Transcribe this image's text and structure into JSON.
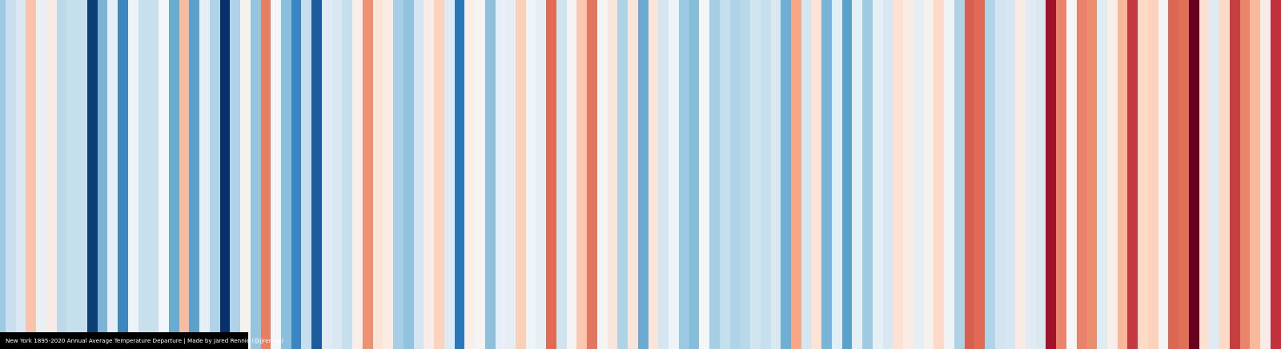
{
  "caption": "New York 1895-2020 Annual Average Temperature Departure | Made by Jared Rennie (@jjrennie)",
  "chart_data": {
    "type": "heatmap",
    "title": "New York 1895-2020 Annual Average Temperature Departure",
    "x_start": 1895,
    "x_end": 2020,
    "legend": "none",
    "grid": false,
    "colors": [
      "#9ecae1",
      "#c9dfee",
      "#d9e8f3",
      "#f9c4a9",
      "#e9f1f5",
      "#f8ebe6",
      "#bcd9ea",
      "#c6dfed",
      "#c6dfed",
      "#0b3f75",
      "#7ab3d6",
      "#e6eff6",
      "#3d87c0",
      "#eef3f7",
      "#c8e0ee",
      "#c8e0ee",
      "#f4f6f9",
      "#68acd2",
      "#f9bca0",
      "#5aa2cc",
      "#e6eff6",
      "#b0d3e8",
      "#08306b",
      "#b0d3e8",
      "#f7f1ee",
      "#94c4df",
      "#e57e63",
      "#f4f6f9",
      "#8abfdc",
      "#3a86c1",
      "#c5dfec",
      "#1c5b9c",
      "#dfeaf3",
      "#d8e7f1",
      "#c5dfec",
      "#f8ede8",
      "#ec9072",
      "#fbe4d8",
      "#fcebe2",
      "#a6cfe5",
      "#91c3de",
      "#d5e6f1",
      "#f9ece7",
      "#fcd3bc",
      "#dde9f3",
      "#2b78b8",
      "#f8ede8",
      "#f5f4f3",
      "#8ec0dd",
      "#e7f0f6",
      "#e4eef4",
      "#fbd0b9",
      "#eef3f6",
      "#e5eff4",
      "#e06a53",
      "#cfe3ef",
      "#f4f4f4",
      "#fac8b0",
      "#e1775f",
      "#f5f4f3",
      "#fbe5da",
      "#add3e7",
      "#fae4d9",
      "#6aabd3",
      "#fbe5da",
      "#d5e6f1",
      "#eef3f7",
      "#9bc9e1",
      "#86bdda",
      "#f4f6f8",
      "#a6cfe5",
      "#c6dfec",
      "#b0d4e7",
      "#b9d9ea",
      "#d1e5f0",
      "#c8e0ee",
      "#d9e8f1",
      "#6eaed4",
      "#f6a886",
      "#d5e6f1",
      "#fde3d6",
      "#79b5d8",
      "#e2edf4",
      "#5aa2cc",
      "#e5eff6",
      "#9ecbe2",
      "#e6eff5",
      "#d8e7f1",
      "#fde1d3",
      "#f9ebe6",
      "#e6eff4",
      "#f8f0ed",
      "#fdd9c7",
      "#eef3f7",
      "#aed3e7",
      "#d6604d",
      "#e06a53",
      "#b0d4e7",
      "#d3e5f0",
      "#d7e7f1",
      "#f8ebe6",
      "#e0ebf3",
      "#d9e8f1",
      "#a1132b",
      "#e8856a",
      "#f4f6f8",
      "#e8836a",
      "#ec8e6e",
      "#e0ecf3",
      "#f8eee9",
      "#f7b799",
      "#c4393f",
      "#fddbc7",
      "#fcd4bd",
      "#f4f4f4",
      "#dd6650",
      "#e07057",
      "#6a0020",
      "#fde0d2",
      "#deebf3",
      "#fddac7",
      "#c63f40",
      "#e8856a",
      "#f7b89b",
      "#f8ece8",
      "#c1303c"
    ],
    "colormap": "RdBu_r (blue = cooler, red = warmer)"
  }
}
